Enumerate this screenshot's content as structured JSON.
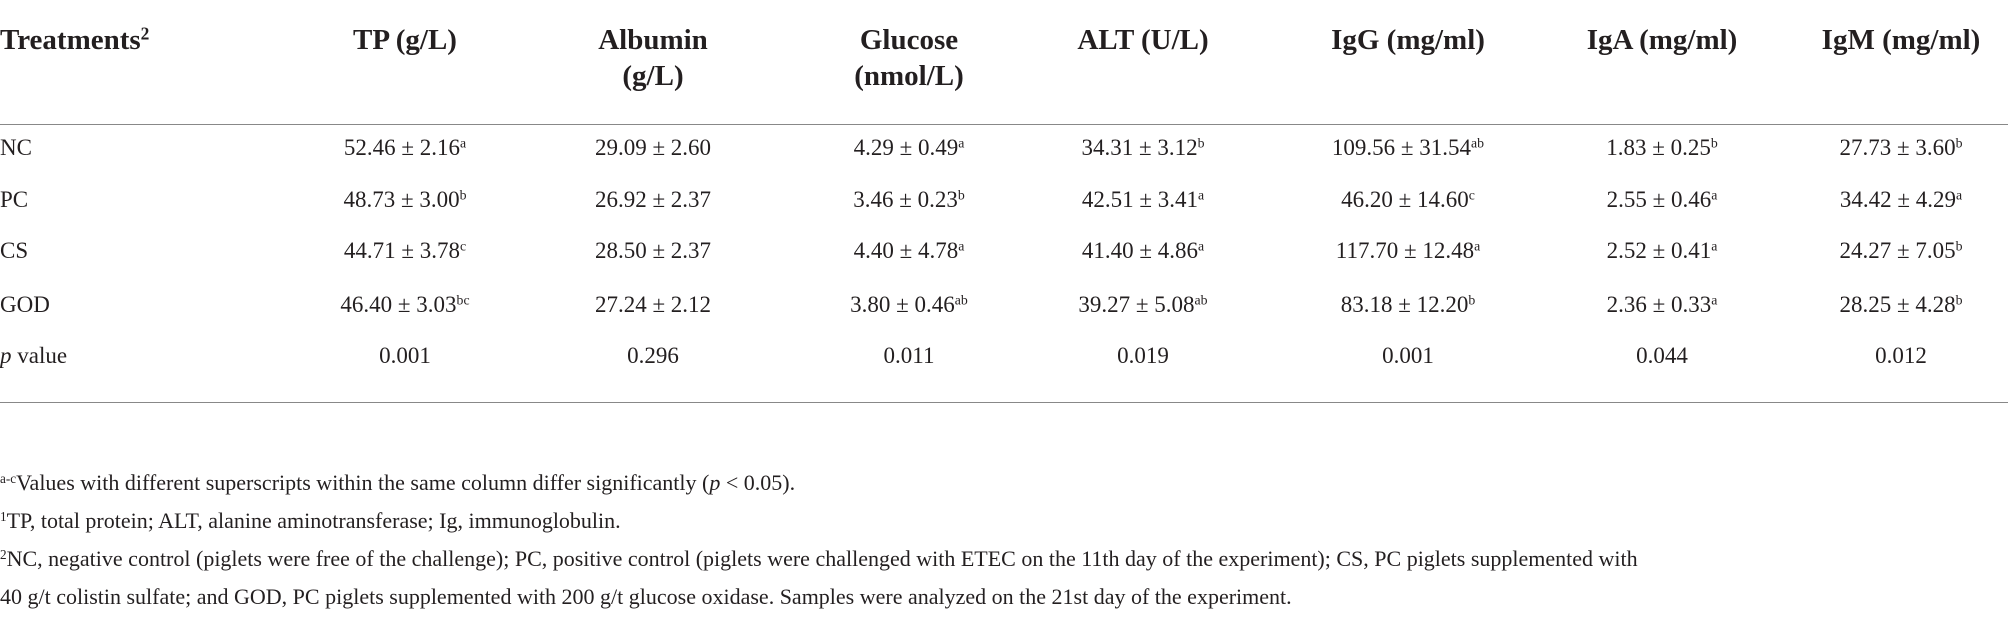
{
  "header": {
    "first": {
      "text": "Treatments",
      "sup": "2"
    },
    "columns": [
      [
        "TP (g/L)"
      ],
      [
        "Albumin",
        "(g/L)"
      ],
      [
        "Glucose",
        "(nmol/L)"
      ],
      [
        "ALT (U/L)"
      ],
      [
        "IgG (mg/ml)"
      ],
      [
        "IgA (mg/ml)"
      ],
      [
        "IgM (mg/ml)"
      ]
    ]
  },
  "table": {
    "rows": [
      {
        "label": [
          "NC"
        ],
        "cells": [
          {
            "value": "52.46 ± 2.16",
            "sup": "a"
          },
          {
            "value": "29.09 ± 2.60"
          },
          {
            "value": "4.29 ± 0.49",
            "sup": "a"
          },
          {
            "value": "34.31 ± 3.12",
            "sup": "b"
          },
          {
            "value": "109.56 ± 31.54",
            "sup": "ab"
          },
          {
            "value": "1.83 ± 0.25",
            "sup": "b"
          },
          {
            "value": "27.73 ± 3.60",
            "sup": "b"
          }
        ]
      },
      {
        "label": [
          "PC"
        ],
        "cells": [
          {
            "value": "48.73 ± 3.00",
            "sup": "b"
          },
          {
            "value": "26.92 ± 2.37"
          },
          {
            "value": "3.46 ± 0.23",
            "sup": "b"
          },
          {
            "value": "42.51 ± 3.41",
            "sup": "a"
          },
          {
            "value": "46.20 ± 14.60",
            "sup": "c"
          },
          {
            "value": "2.55 ± 0.46",
            "sup": "a"
          },
          {
            "value": "34.42 ± 4.29",
            "sup": "a"
          }
        ]
      },
      {
        "label": [
          "CS"
        ],
        "cells": [
          {
            "value": "44.71 ± 3.78",
            "sup": "c"
          },
          {
            "value": "28.50 ± 2.37"
          },
          {
            "value": "4.40 ± 4.78",
            "sup": "a"
          },
          {
            "value": "41.40 ± 4.86",
            "sup": "a"
          },
          {
            "value": "117.70 ± 12.48",
            "sup": "a"
          },
          {
            "value": "2.52 ± 0.41",
            "sup": "a"
          },
          {
            "value": "24.27 ± 7.05",
            "sup": "b"
          }
        ]
      },
      {
        "label": [
          "GOD"
        ],
        "cells": [
          {
            "value": "46.40 ± 3.03",
            "sup": "bc"
          },
          {
            "value": "27.24 ± 2.12"
          },
          {
            "value": "3.80 ± 0.46",
            "sup": "ab"
          },
          {
            "value": "39.27 ± 5.08",
            "sup": "ab"
          },
          {
            "value": "83.18 ± 12.20",
            "sup": "b"
          },
          {
            "value": "2.36 ± 0.33",
            "sup": "a"
          },
          {
            "value": "28.25 ± 4.28",
            "sup": "b"
          }
        ]
      },
      {
        "label": [
          "p",
          " value"
        ],
        "cells": [
          {
            "value": "0.001"
          },
          {
            "value": "0.296"
          },
          {
            "value": "0.011"
          },
          {
            "value": "0.019"
          },
          {
            "value": "0.001"
          },
          {
            "value": "0.044"
          },
          {
            "value": "0.012"
          }
        ]
      }
    ]
  },
  "footnotes": [
    {
      "sup": "a-c",
      "parts": [
        "Values with different superscripts within the same column differ significantly (",
        "p",
        " < 0.05)."
      ]
    },
    {
      "sup": "1",
      "parts": [
        "TP, total protein; ALT, alanine aminotransferase; Ig, immunoglobulin."
      ]
    },
    {
      "sup": "2",
      "parts": [
        "NC, negative control (piglets were free of the challenge); PC, positive control (piglets were challenged with ETEC on the 11th day of the experiment); CS, PC piglets supplemented with",
        "40 g/t colistin sulfate; and GOD, PC piglets supplemented with 200 g/t glucose oxidase. Samples were analyzed on the 21st day of the experiment."
      ]
    }
  ]
}
